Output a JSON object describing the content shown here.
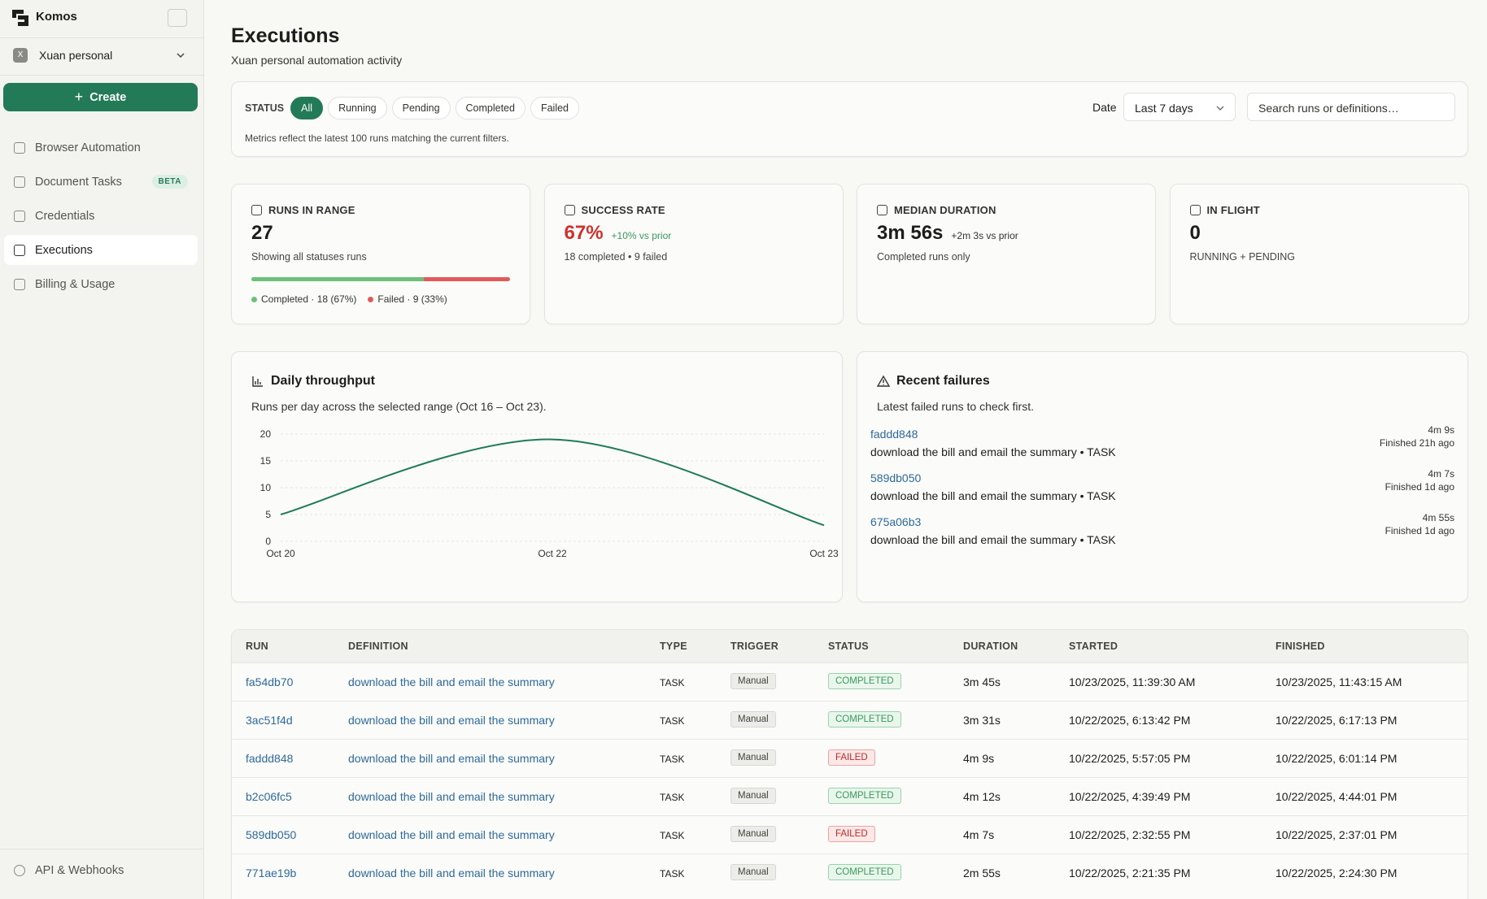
{
  "sidebar": {
    "brand": "Komos",
    "workspace": {
      "avatar": "X",
      "name": "Xuan personal"
    },
    "create": "Create",
    "nav": [
      {
        "label": "Browser Automation"
      },
      {
        "label": "Document Tasks",
        "badge": "BETA"
      },
      {
        "label": "Credentials"
      },
      {
        "label": "Executions",
        "active": true
      },
      {
        "label": "Billing & Usage"
      }
    ],
    "footer": "API & Webhooks"
  },
  "header": {
    "title": "Executions",
    "subtitle": "Xuan personal automation activity"
  },
  "filters": {
    "status_label": "STATUS",
    "statuses": [
      "All",
      "Running",
      "Pending",
      "Completed",
      "Failed"
    ],
    "date_label": "Date",
    "date_value": "Last 7 days",
    "search_placeholder": "Search runs or definitions…",
    "note": "Metrics reflect the latest 100 runs matching the current filters."
  },
  "metrics": [
    {
      "label": "RUNS IN RANGE",
      "value": "27",
      "sub": "Showing all statuses runs",
      "breakdown": [
        {
          "label": "Completed · 18 (67%)",
          "count": 18,
          "color": "#6cc07a"
        },
        {
          "label": "Failed · 9 (33%)",
          "count": 9,
          "color": "#e05a5a"
        }
      ]
    },
    {
      "label": "SUCCESS RATE",
      "value": "67%",
      "value_color": "#d0312d",
      "delta": "+10% vs prior",
      "delta_color": "#3a9a5b",
      "sub": "18 completed • 9 failed"
    },
    {
      "label": "MEDIAN DURATION",
      "value": "3m 56s",
      "delta": "+2m 3s vs prior",
      "delta_color": "#33332f",
      "sub": "Completed runs only"
    },
    {
      "label": "IN FLIGHT",
      "value": "0",
      "sub": "RUNNING + PENDING"
    }
  ],
  "chart_data": {
    "type": "line",
    "title": "Daily throughput",
    "subtitle": "Runs per day across the selected range (Oct 16 – Oct 23).",
    "categories": [
      "Oct 20",
      "Oct 22",
      "Oct 23"
    ],
    "values": [
      5,
      19,
      3
    ],
    "color": "#1f7a5a",
    "ylim": [
      0,
      20
    ],
    "yticks": [
      0,
      5,
      10,
      15,
      20
    ],
    "grid": true
  },
  "failures": {
    "title": "Recent failures",
    "subtitle": "Latest failed runs to check first.",
    "items": [
      {
        "id": "faddd848",
        "desc": "download the bill and email the summary • TASK",
        "duration": "4m 9s",
        "finished": "Finished 21h ago"
      },
      {
        "id": "589db050",
        "desc": "download the bill and email the summary • TASK",
        "duration": "4m 7s",
        "finished": "Finished 1d ago"
      },
      {
        "id": "675a06b3",
        "desc": "download the bill and email the summary • TASK",
        "duration": "4m 55s",
        "finished": "Finished 1d ago"
      }
    ]
  },
  "table": {
    "headers": [
      "RUN",
      "DEFINITION",
      "TYPE",
      "TRIGGER",
      "STATUS",
      "DURATION",
      "STARTED",
      "FINISHED"
    ],
    "rows": [
      [
        "fa54db70",
        "download the bill and email the summary",
        "TASK",
        "Manual",
        "COMPLETED",
        "3m 45s",
        "10/23/2025, 11:39:30 AM",
        "10/23/2025, 11:43:15 AM"
      ],
      [
        "3ac51f4d",
        "download the bill and email the summary",
        "TASK",
        "Manual",
        "COMPLETED",
        "3m 31s",
        "10/22/2025, 6:13:42 PM",
        "10/22/2025, 6:17:13 PM"
      ],
      [
        "faddd848",
        "download the bill and email the summary",
        "TASK",
        "Manual",
        "FAILED",
        "4m 9s",
        "10/22/2025, 5:57:05 PM",
        "10/22/2025, 6:01:14 PM"
      ],
      [
        "b2c06fc5",
        "download the bill and email the summary",
        "TASK",
        "Manual",
        "COMPLETED",
        "4m 12s",
        "10/22/2025, 4:39:49 PM",
        "10/22/2025, 4:44:01 PM"
      ],
      [
        "589db050",
        "download the bill and email the summary",
        "TASK",
        "Manual",
        "FAILED",
        "4m 7s",
        "10/22/2025, 2:32:55 PM",
        "10/22/2025, 2:37:01 PM"
      ],
      [
        "771ae19b",
        "download the bill and email the summary",
        "TASK",
        "Manual",
        "COMPLETED",
        "2m 55s",
        "10/22/2025, 2:21:35 PM",
        "10/22/2025, 2:24:30 PM"
      ]
    ]
  }
}
